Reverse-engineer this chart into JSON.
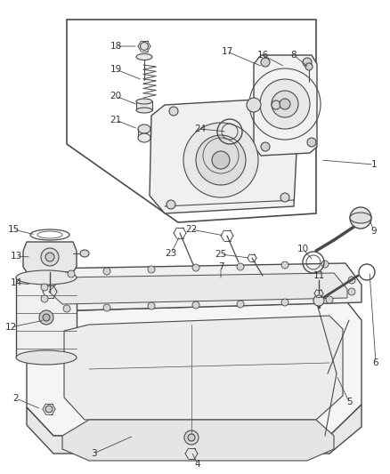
{
  "bg_color": "#ffffff",
  "line_color": "#4a4a4a",
  "label_color": "#333333",
  "label_fontsize": 7.5,
  "fig_width": 4.38,
  "fig_height": 5.33,
  "dpi": 100
}
